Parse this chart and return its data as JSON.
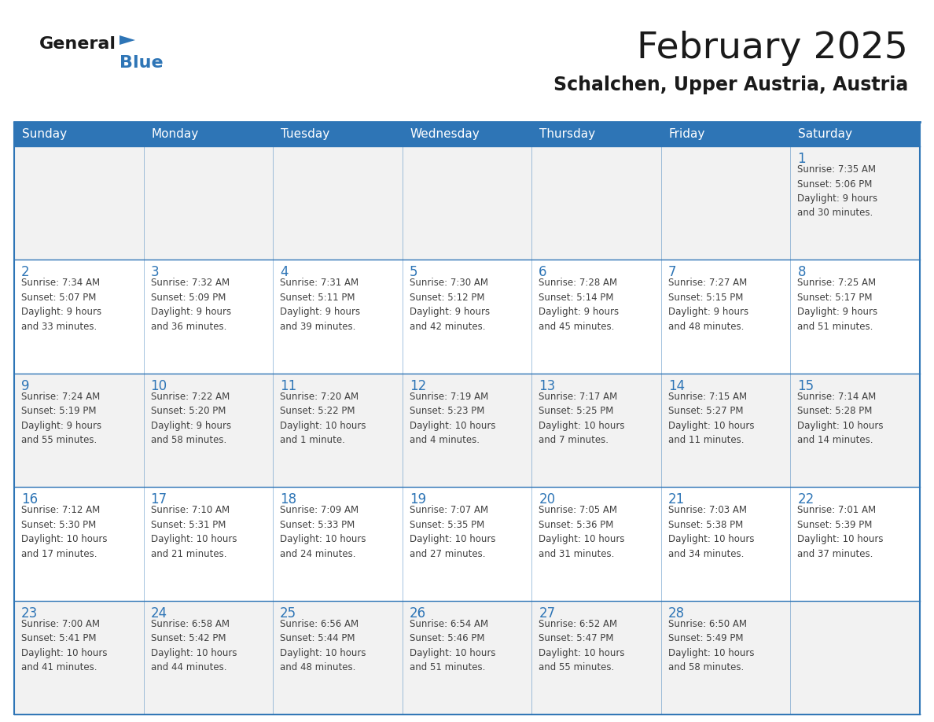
{
  "title": "February 2025",
  "subtitle": "Schalchen, Upper Austria, Austria",
  "header_bg": "#2E75B6",
  "header_text_color": "#FFFFFF",
  "cell_bg_odd": "#F2F2F2",
  "cell_bg_even": "#FFFFFF",
  "text_color": "#404040",
  "day_number_color": "#2E75B6",
  "border_color": "#2E75B6",
  "days_of_week": [
    "Sunday",
    "Monday",
    "Tuesday",
    "Wednesday",
    "Thursday",
    "Friday",
    "Saturday"
  ],
  "weeks": [
    [
      {
        "day": null,
        "info": null
      },
      {
        "day": null,
        "info": null
      },
      {
        "day": null,
        "info": null
      },
      {
        "day": null,
        "info": null
      },
      {
        "day": null,
        "info": null
      },
      {
        "day": null,
        "info": null
      },
      {
        "day": "1",
        "info": "Sunrise: 7:35 AM\nSunset: 5:06 PM\nDaylight: 9 hours\nand 30 minutes."
      }
    ],
    [
      {
        "day": "2",
        "info": "Sunrise: 7:34 AM\nSunset: 5:07 PM\nDaylight: 9 hours\nand 33 minutes."
      },
      {
        "day": "3",
        "info": "Sunrise: 7:32 AM\nSunset: 5:09 PM\nDaylight: 9 hours\nand 36 minutes."
      },
      {
        "day": "4",
        "info": "Sunrise: 7:31 AM\nSunset: 5:11 PM\nDaylight: 9 hours\nand 39 minutes."
      },
      {
        "day": "5",
        "info": "Sunrise: 7:30 AM\nSunset: 5:12 PM\nDaylight: 9 hours\nand 42 minutes."
      },
      {
        "day": "6",
        "info": "Sunrise: 7:28 AM\nSunset: 5:14 PM\nDaylight: 9 hours\nand 45 minutes."
      },
      {
        "day": "7",
        "info": "Sunrise: 7:27 AM\nSunset: 5:15 PM\nDaylight: 9 hours\nand 48 minutes."
      },
      {
        "day": "8",
        "info": "Sunrise: 7:25 AM\nSunset: 5:17 PM\nDaylight: 9 hours\nand 51 minutes."
      }
    ],
    [
      {
        "day": "9",
        "info": "Sunrise: 7:24 AM\nSunset: 5:19 PM\nDaylight: 9 hours\nand 55 minutes."
      },
      {
        "day": "10",
        "info": "Sunrise: 7:22 AM\nSunset: 5:20 PM\nDaylight: 9 hours\nand 58 minutes."
      },
      {
        "day": "11",
        "info": "Sunrise: 7:20 AM\nSunset: 5:22 PM\nDaylight: 10 hours\nand 1 minute."
      },
      {
        "day": "12",
        "info": "Sunrise: 7:19 AM\nSunset: 5:23 PM\nDaylight: 10 hours\nand 4 minutes."
      },
      {
        "day": "13",
        "info": "Sunrise: 7:17 AM\nSunset: 5:25 PM\nDaylight: 10 hours\nand 7 minutes."
      },
      {
        "day": "14",
        "info": "Sunrise: 7:15 AM\nSunset: 5:27 PM\nDaylight: 10 hours\nand 11 minutes."
      },
      {
        "day": "15",
        "info": "Sunrise: 7:14 AM\nSunset: 5:28 PM\nDaylight: 10 hours\nand 14 minutes."
      }
    ],
    [
      {
        "day": "16",
        "info": "Sunrise: 7:12 AM\nSunset: 5:30 PM\nDaylight: 10 hours\nand 17 minutes."
      },
      {
        "day": "17",
        "info": "Sunrise: 7:10 AM\nSunset: 5:31 PM\nDaylight: 10 hours\nand 21 minutes."
      },
      {
        "day": "18",
        "info": "Sunrise: 7:09 AM\nSunset: 5:33 PM\nDaylight: 10 hours\nand 24 minutes."
      },
      {
        "day": "19",
        "info": "Sunrise: 7:07 AM\nSunset: 5:35 PM\nDaylight: 10 hours\nand 27 minutes."
      },
      {
        "day": "20",
        "info": "Sunrise: 7:05 AM\nSunset: 5:36 PM\nDaylight: 10 hours\nand 31 minutes."
      },
      {
        "day": "21",
        "info": "Sunrise: 7:03 AM\nSunset: 5:38 PM\nDaylight: 10 hours\nand 34 minutes."
      },
      {
        "day": "22",
        "info": "Sunrise: 7:01 AM\nSunset: 5:39 PM\nDaylight: 10 hours\nand 37 minutes."
      }
    ],
    [
      {
        "day": "23",
        "info": "Sunrise: 7:00 AM\nSunset: 5:41 PM\nDaylight: 10 hours\nand 41 minutes."
      },
      {
        "day": "24",
        "info": "Sunrise: 6:58 AM\nSunset: 5:42 PM\nDaylight: 10 hours\nand 44 minutes."
      },
      {
        "day": "25",
        "info": "Sunrise: 6:56 AM\nSunset: 5:44 PM\nDaylight: 10 hours\nand 48 minutes."
      },
      {
        "day": "26",
        "info": "Sunrise: 6:54 AM\nSunset: 5:46 PM\nDaylight: 10 hours\nand 51 minutes."
      },
      {
        "day": "27",
        "info": "Sunrise: 6:52 AM\nSunset: 5:47 PM\nDaylight: 10 hours\nand 55 minutes."
      },
      {
        "day": "28",
        "info": "Sunrise: 6:50 AM\nSunset: 5:49 PM\nDaylight: 10 hours\nand 58 minutes."
      },
      {
        "day": null,
        "info": null
      }
    ]
  ],
  "logo_color_general": "#1a1a1a",
  "logo_color_blue": "#2E75B6",
  "logo_triangle_color": "#2E75B6",
  "title_fontsize": 34,
  "subtitle_fontsize": 17,
  "header_fontsize": 11,
  "day_num_fontsize": 12,
  "info_fontsize": 8.5
}
